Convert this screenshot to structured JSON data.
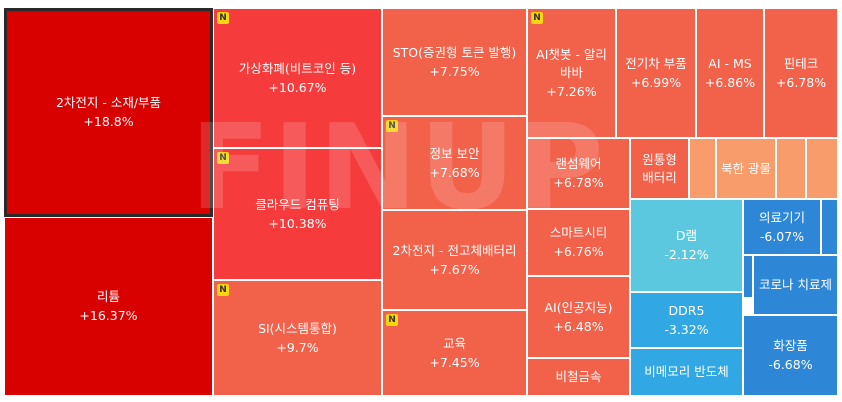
{
  "watermark": "FINUP",
  "badge_label": "N",
  "colors": {
    "up_strong": "#d90000",
    "up_mid": "#f53b3b",
    "up_light": "#f2614a",
    "up_faint": "#f79c6a",
    "down_light": "#5cc8e0",
    "down_mid": "#31a8e3",
    "down_strong": "#2e86d6"
  },
  "chart_data": {
    "type": "treemap",
    "unit": "%",
    "items": [
      {
        "name": "2차전지 - 소재/부품",
        "change": 18.8,
        "label": "+18.8%",
        "new": false,
        "selected": true
      },
      {
        "name": "리튬",
        "change": 16.37,
        "label": "+16.37%",
        "new": false
      },
      {
        "name": "가상화폐(비트코인 등)",
        "change": 10.67,
        "label": "+10.67%",
        "new": true
      },
      {
        "name": "클라우드 컴퓨팅",
        "change": 10.38,
        "label": "+10.38%",
        "new": true
      },
      {
        "name": "SI(시스템통합)",
        "change": 9.7,
        "label": "+9.7%",
        "new": true
      },
      {
        "name": "STO(증권형 토큰 발행)",
        "change": 7.75,
        "label": "+7.75%",
        "new": false
      },
      {
        "name": "정보 보안",
        "change": 7.68,
        "label": "+7.68%",
        "new": true
      },
      {
        "name": "2차전지 - 전고체배터리",
        "change": 7.67,
        "label": "+7.67%",
        "new": false
      },
      {
        "name": "교육",
        "change": 7.45,
        "label": "+7.45%",
        "new": true
      },
      {
        "name": "AI챗봇 - 알리바바",
        "change": 7.26,
        "label": "+7.26%",
        "new": true
      },
      {
        "name": "전기차 부품",
        "change": 6.99,
        "label": "+6.99%",
        "new": false
      },
      {
        "name": "AI - MS",
        "change": 6.86,
        "label": "+6.86%",
        "new": false
      },
      {
        "name": "핀테크",
        "change": 6.78,
        "label": "+6.78%",
        "new": false
      },
      {
        "name": "랜섬웨어",
        "change": 6.78,
        "label": "+6.78%",
        "new": false
      },
      {
        "name": "스마트시티",
        "change": 6.76,
        "label": "+6.76%",
        "new": false
      },
      {
        "name": "AI(인공지능)",
        "change": 6.48,
        "label": "+6.48%",
        "new": false
      },
      {
        "name": "비철금속",
        "change": null,
        "label": "",
        "new": false
      },
      {
        "name": "원통형 배터리",
        "change": null,
        "label": "",
        "new": false
      },
      {
        "name": "북한 광물",
        "change": null,
        "label": "",
        "new": false
      },
      {
        "name": "",
        "change": null,
        "label": "",
        "new": false
      },
      {
        "name": "",
        "change": null,
        "label": "",
        "new": false
      },
      {
        "name": "D램",
        "change": -2.12,
        "label": "-2.12%",
        "new": false
      },
      {
        "name": "DDR5",
        "change": -3.32,
        "label": "-3.32%",
        "new": false
      },
      {
        "name": "비메모리 반도체",
        "change": null,
        "label": "",
        "new": false
      },
      {
        "name": "의료기기",
        "change": -6.07,
        "label": "-6.07%",
        "new": false
      },
      {
        "name": "",
        "change": null,
        "label": "",
        "new": false
      },
      {
        "name": "",
        "change": null,
        "label": "",
        "new": false
      },
      {
        "name": "코로나 치료제",
        "change": null,
        "label": "",
        "new": false
      },
      {
        "name": "화장품",
        "change": -6.68,
        "label": "-6.68%",
        "new": false
      }
    ]
  }
}
